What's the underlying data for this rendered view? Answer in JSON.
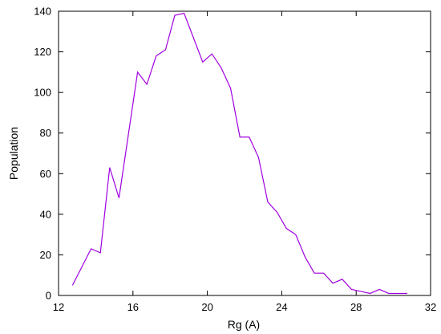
{
  "chart_data": {
    "type": "line",
    "title": "",
    "xlabel": "Rg (A)",
    "ylabel": "Population",
    "xlim": [
      12,
      32
    ],
    "ylim": [
      0,
      140
    ],
    "xticks": [
      12,
      16,
      20,
      24,
      28,
      32
    ],
    "yticks": [
      0,
      20,
      40,
      60,
      80,
      100,
      120,
      140
    ],
    "grid": false,
    "legend": "none",
    "series": [
      {
        "color": "#a000e0",
        "x": [
          12.75,
          13.25,
          13.75,
          14.25,
          14.75,
          15.25,
          15.75,
          16.25,
          16.75,
          17.25,
          17.75,
          18.25,
          18.75,
          19.25,
          19.75,
          20.25,
          20.75,
          21.25,
          21.75,
          22.25,
          22.75,
          23.25,
          23.75,
          24.25,
          24.75,
          25.25,
          25.75,
          26.25,
          26.75,
          27.25,
          27.75,
          28.25,
          28.75,
          29.25,
          29.75,
          30.25,
          30.75
        ],
        "y": [
          5,
          14,
          23,
          21,
          63,
          48,
          79,
          110,
          104,
          118,
          121,
          138,
          139,
          127,
          115,
          119,
          112,
          102,
          78,
          78,
          68,
          46,
          41,
          33,
          30,
          19,
          11,
          11,
          6,
          8,
          3,
          2,
          1,
          3,
          1,
          1,
          1
        ]
      }
    ]
  }
}
